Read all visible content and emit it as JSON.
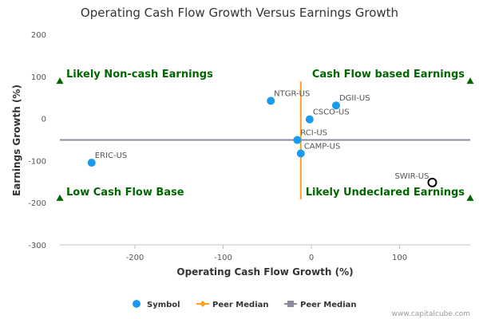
{
  "chart_data": {
    "type": "scatter",
    "title": "Operating Cash Flow Growth Versus Earnings Growth",
    "xlabel": "Operating Cash Flow Growth (%)",
    "ylabel": "Earnings Growth (%)",
    "xlim": [
      -285,
      180
    ],
    "ylim": [
      -300,
      200
    ],
    "x_ticks": [
      -200,
      -100,
      0,
      100
    ],
    "y_ticks": [
      200,
      100,
      0,
      -100,
      -200,
      -300
    ],
    "grid": false,
    "series": [
      {
        "name": "Symbol",
        "color": "#1a9bef",
        "points": [
          {
            "label": "NTGR-US",
            "x": -46,
            "y": 42
          },
          {
            "label": "DGII-US",
            "x": 28,
            "y": 31
          },
          {
            "label": "CSCO-US",
            "x": -2,
            "y": -2
          },
          {
            "label": "RCI-US",
            "x": -16,
            "y": -51
          },
          {
            "label": "CAMP-US",
            "x": -12,
            "y": -83
          },
          {
            "label": "ERIC-US",
            "x": -249,
            "y": -105
          }
        ]
      }
    ],
    "highlight_point": {
      "label": "SWIR-US",
      "x": 137,
      "y": -152
    },
    "peer_median": {
      "x": -12,
      "y": -51,
      "x_line_color": "#f7a21c",
      "y_line_color": "#8c8ca0",
      "x_line_range": [
        -192,
        88
      ]
    },
    "quadrant_labels": {
      "top_left": "Likely Non-cash Earnings",
      "top_right": "Cash Flow based Earnings",
      "bottom_left": "Low Cash Flow Base",
      "bottom_right": "Likely Undeclared Earnings"
    },
    "quadrant_markers": [
      {
        "x": -285,
        "y": 88
      },
      {
        "x": 180,
        "y": 88
      },
      {
        "x": -285,
        "y": -190
      },
      {
        "x": 180,
        "y": -190
      }
    ],
    "quadrant_color": "#006600",
    "legend": {
      "position": "bottom",
      "items": [
        {
          "label": "Symbol",
          "type": "dot",
          "color": "#1a9bef"
        },
        {
          "label": "Peer Median",
          "type": "line-diamond",
          "color": "#f7a21c"
        },
        {
          "label": "Peer Median",
          "type": "line-square",
          "color": "#8c8ca0"
        }
      ]
    },
    "credit": "www.capitalcube.com"
  }
}
